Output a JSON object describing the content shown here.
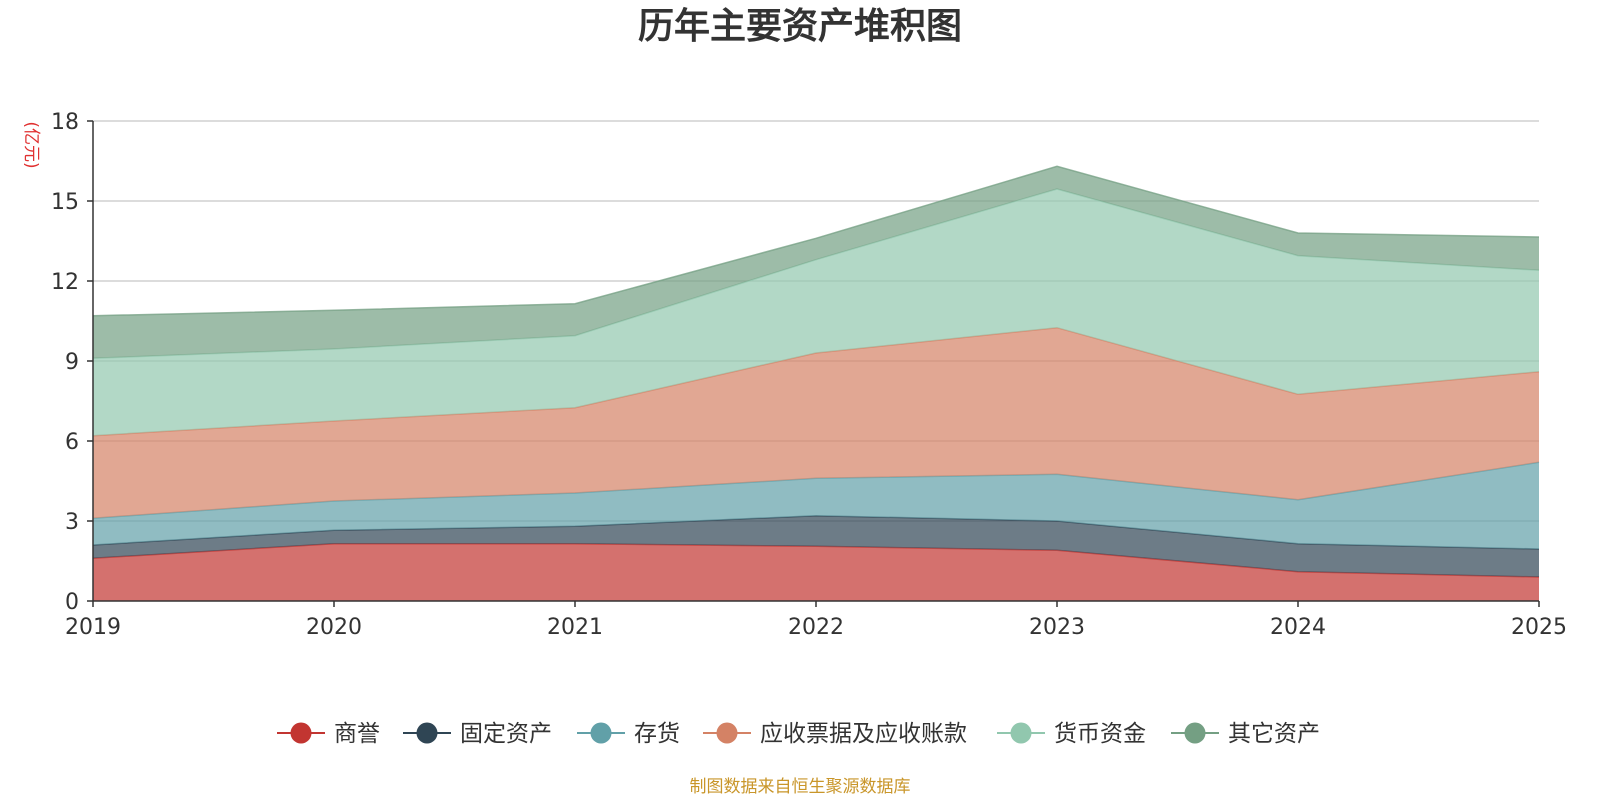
{
  "chart_data": {
    "type": "area",
    "stacked": true,
    "title": "历年主要资产堆积图",
    "ylabel": "(亿元)",
    "xlabel": "",
    "x": [
      "2019",
      "2020",
      "2021",
      "2022",
      "2023",
      "2024",
      "2025"
    ],
    "ylim": [
      0,
      18
    ],
    "yticks": [
      0,
      3,
      6,
      9,
      12,
      15,
      18
    ],
    "grid": true,
    "legend_position": "bottom",
    "series": [
      {
        "name": "商誉",
        "color": "#c23531",
        "values": [
          1.6,
          2.15,
          2.15,
          2.05,
          1.9,
          1.1,
          0.9
        ]
      },
      {
        "name": "固定资产",
        "color": "#2f4554",
        "values": [
          0.5,
          0.5,
          0.65,
          1.15,
          1.1,
          1.05,
          1.05
        ]
      },
      {
        "name": "存货",
        "color": "#61a0a8",
        "values": [
          1.0,
          1.1,
          1.25,
          1.4,
          1.75,
          1.65,
          3.25
        ]
      },
      {
        "name": "应收票据及应收账款",
        "color": "#d48265",
        "values": [
          3.1,
          3.0,
          3.2,
          4.7,
          5.5,
          3.95,
          3.4
        ]
      },
      {
        "name": "货币资金",
        "color": "#91c7ae",
        "values": [
          2.9,
          2.7,
          2.7,
          3.5,
          5.2,
          5.2,
          3.8
        ]
      },
      {
        "name": "其它资产",
        "color": "#749f83",
        "values": [
          1.6,
          1.45,
          1.2,
          0.8,
          0.85,
          0.85,
          1.25
        ]
      }
    ],
    "source_text": "制图数据来自恒生聚源数据库",
    "unit_color": "#e03030",
    "source_color": "#c9962a"
  }
}
